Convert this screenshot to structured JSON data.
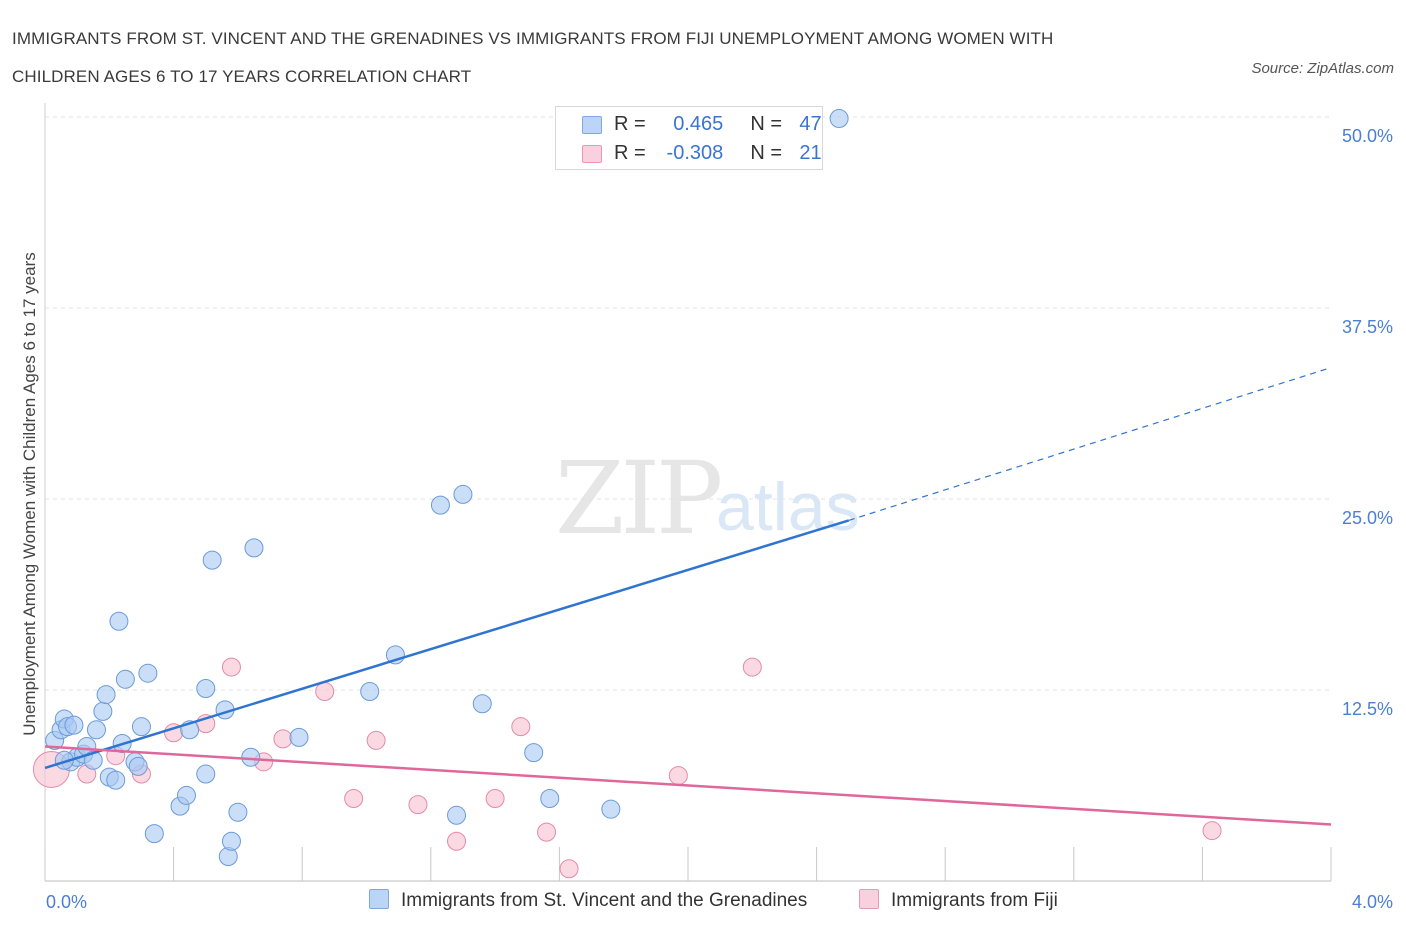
{
  "title_line1": "IMMIGRANTS FROM ST. VINCENT AND THE GRENADINES VS IMMIGRANTS FROM FIJI UNEMPLOYMENT AMONG WOMEN WITH",
  "title_line2": "CHILDREN AGES 6 TO 17 YEARS CORRELATION CHART",
  "source": "Source: ZipAtlas.com",
  "watermark_zip": "ZIP",
  "watermark_atlas": "atlas",
  "colors": {
    "blue": "#a9c8f2",
    "blue_stroke": "#6a9bd9",
    "blue_line": "#2f74d0",
    "pink": "#f6c0d0",
    "pink_stroke": "#e48aa8",
    "pink_line": "#e0679a",
    "tick_text": "#4a7fd4",
    "grid": "#e3e3e3"
  },
  "legend": {
    "row1": {
      "r_label": "R =",
      "r_value": "0.465",
      "n_label": "N =",
      "n_value": "47"
    },
    "row2": {
      "r_label": "R =",
      "r_value": "-0.308",
      "n_label": "N =",
      "n_value": "21"
    }
  },
  "chart_data": {
    "type": "scatter",
    "title": "IMMIGRANTS FROM ST. VINCENT AND THE GRENADINES VS IMMIGRANTS FROM FIJI UNEMPLOYMENT AMONG WOMEN WITH CHILDREN AGES 6 TO 17 YEARS CORRELATION CHART",
    "ylabel": "Unemployment Among Women with Children Ages 6 to 17 years",
    "xlabel": "",
    "xlim": [
      0,
      4.0
    ],
    "ylim": [
      0,
      50
    ],
    "x_tick_labels": [
      "0.0%",
      "4.0%"
    ],
    "y_ticks": [
      12.5,
      25.0,
      37.5,
      50.0
    ],
    "y_tick_labels": [
      "12.5%",
      "25.0%",
      "37.5%",
      "50.0%"
    ],
    "grid": true,
    "legend_position": "top-center",
    "series": [
      {
        "name": "Immigrants from St. Vincent and the Grenadines",
        "color": "#a9c8f2",
        "r": 0.465,
        "n": 47,
        "trend": {
          "x": [
            0.0,
            2.5
          ],
          "y": [
            7.4,
            23.6
          ],
          "dashed_extension": {
            "x": [
              2.5,
              4.0
            ],
            "y": [
              23.6,
              33.6
            ]
          }
        },
        "points": [
          [
            0.03,
            9.2
          ],
          [
            0.05,
            9.9
          ],
          [
            0.06,
            10.6
          ],
          [
            0.07,
            10.1
          ],
          [
            0.08,
            7.8
          ],
          [
            0.09,
            10.2
          ],
          [
            0.1,
            8.1
          ],
          [
            0.12,
            8.3
          ],
          [
            0.13,
            8.8
          ],
          [
            0.15,
            7.9
          ],
          [
            0.16,
            9.9
          ],
          [
            0.18,
            11.1
          ],
          [
            0.19,
            12.2
          ],
          [
            0.2,
            6.8
          ],
          [
            0.22,
            6.6
          ],
          [
            0.23,
            17.0
          ],
          [
            0.24,
            9.0
          ],
          [
            0.25,
            13.2
          ],
          [
            0.28,
            7.8
          ],
          [
            0.29,
            7.5
          ],
          [
            0.3,
            10.1
          ],
          [
            0.32,
            13.6
          ],
          [
            0.34,
            3.1
          ],
          [
            0.42,
            4.9
          ],
          [
            0.44,
            5.6
          ],
          [
            0.45,
            9.9
          ],
          [
            0.5,
            12.6
          ],
          [
            0.5,
            7.0
          ],
          [
            0.52,
            21.0
          ],
          [
            0.56,
            11.2
          ],
          [
            0.57,
            1.6
          ],
          [
            0.58,
            2.6
          ],
          [
            0.6,
            4.5
          ],
          [
            0.64,
            8.1
          ],
          [
            0.65,
            21.8
          ],
          [
            0.79,
            9.4
          ],
          [
            1.01,
            12.4
          ],
          [
            1.09,
            14.8
          ],
          [
            1.23,
            24.6
          ],
          [
            1.3,
            25.3
          ],
          [
            1.28,
            4.3
          ],
          [
            1.36,
            11.6
          ],
          [
            1.52,
            8.4
          ],
          [
            1.57,
            5.4
          ],
          [
            1.76,
            4.7
          ],
          [
            2.47,
            49.9
          ],
          [
            0.06,
            7.9
          ]
        ]
      },
      {
        "name": "Immigrants from Fiji",
        "color": "#f6c0d0",
        "r": -0.308,
        "n": 21,
        "trend": {
          "x": [
            0.0,
            4.0
          ],
          "y": [
            8.8,
            3.7
          ]
        },
        "points": [
          [
            0.02,
            7.3
          ],
          [
            0.13,
            7.0
          ],
          [
            0.22,
            8.2
          ],
          [
            0.3,
            7.0
          ],
          [
            0.4,
            9.7
          ],
          [
            0.5,
            10.3
          ],
          [
            0.58,
            14.0
          ],
          [
            0.68,
            7.8
          ],
          [
            0.74,
            9.3
          ],
          [
            0.87,
            12.4
          ],
          [
            0.96,
            5.4
          ],
          [
            1.03,
            9.2
          ],
          [
            1.16,
            5.0
          ],
          [
            1.28,
            2.6
          ],
          [
            1.4,
            5.4
          ],
          [
            1.48,
            10.1
          ],
          [
            1.56,
            3.2
          ],
          [
            1.63,
            0.8
          ],
          [
            1.97,
            6.9
          ],
          [
            2.2,
            14.0
          ],
          [
            3.63,
            3.3
          ]
        ]
      }
    ]
  },
  "bottom_legend": {
    "item1": "Immigrants from St. Vincent and the Grenadines",
    "item2": "Immigrants from Fiji"
  }
}
